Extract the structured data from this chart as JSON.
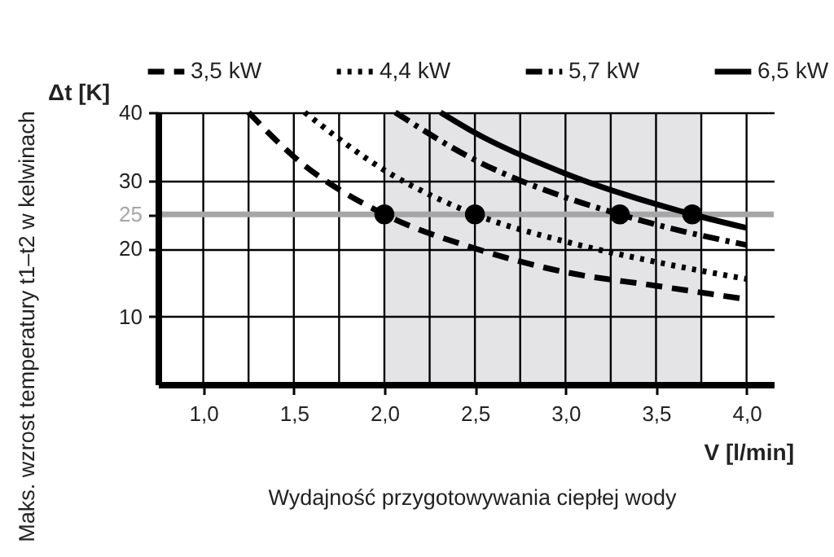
{
  "chart_data": {
    "type": "line",
    "xlabel": "V [l/min]",
    "ylabel": "Δt [K]",
    "annotations": [
      "Maks. wzrost temperatury t1–t2 w kelwinach",
      "Wydajność przygotowywania ciepłej wody"
    ],
    "xlim": [
      0.75,
      4.15
    ],
    "ylim": [
      0,
      40
    ],
    "xticks": [
      {
        "value": 1.0,
        "label": "1,0"
      },
      {
        "value": 1.25,
        "label": null
      },
      {
        "value": 1.5,
        "label": "1,5"
      },
      {
        "value": 1.75,
        "label": null
      },
      {
        "value": 2.0,
        "label": "2,0"
      },
      {
        "value": 2.25,
        "label": null
      },
      {
        "value": 2.5,
        "label": "2,5"
      },
      {
        "value": 2.75,
        "label": null
      },
      {
        "value": 3.0,
        "label": "3,0"
      },
      {
        "value": 3.25,
        "label": null
      },
      {
        "value": 3.5,
        "label": "3,5"
      },
      {
        "value": 3.75,
        "label": null
      },
      {
        "value": 4.0,
        "label": "4,0"
      }
    ],
    "yticks": [
      10,
      20,
      25,
      30,
      40
    ],
    "grid": true,
    "legend": "top",
    "series": [
      {
        "name": "3,5 kW",
        "color": "#000000",
        "line_style": "dashed",
        "x": [
          1.25,
          1.5,
          2.0,
          2.5,
          3.0,
          3.5,
          4.0
        ],
        "values": [
          40,
          33.5,
          25,
          20,
          16.5,
          14.5,
          12.5
        ]
      },
      {
        "name": "4,4 kW",
        "color": "#000000",
        "line_style": "dotted",
        "x": [
          1.56,
          2.0,
          2.5,
          3.0,
          3.5,
          4.0
        ],
        "values": [
          40,
          31.5,
          25,
          21,
          18,
          15.5
        ]
      },
      {
        "name": "5,7 kW",
        "color": "#000000",
        "line_style": "dashdot",
        "x": [
          2.06,
          2.5,
          3.0,
          3.3,
          3.5,
          4.0
        ],
        "values": [
          40,
          33,
          27.5,
          25,
          23.5,
          20.5
        ]
      },
      {
        "name": "6,5 kW",
        "color": "#000000",
        "line_style": "solid",
        "x": [
          2.31,
          2.5,
          3.0,
          3.5,
          3.7,
          4.0
        ],
        "values": [
          40,
          37,
          31,
          26.5,
          25,
          23
        ]
      },
      {
        "type": "scatter",
        "color": "#000000",
        "marker": "circle",
        "x": [
          2.0,
          2.5,
          3.3,
          3.7
        ],
        "values": [
          25,
          25,
          25,
          25
        ]
      }
    ],
    "ref_lines": [
      {
        "axis": "y",
        "value": 25,
        "color": "#a6a6a6"
      }
    ],
    "bands": [
      {
        "axis": "x",
        "from": 2.0,
        "to": 3.75,
        "color": "#e4e4e6"
      }
    ]
  }
}
